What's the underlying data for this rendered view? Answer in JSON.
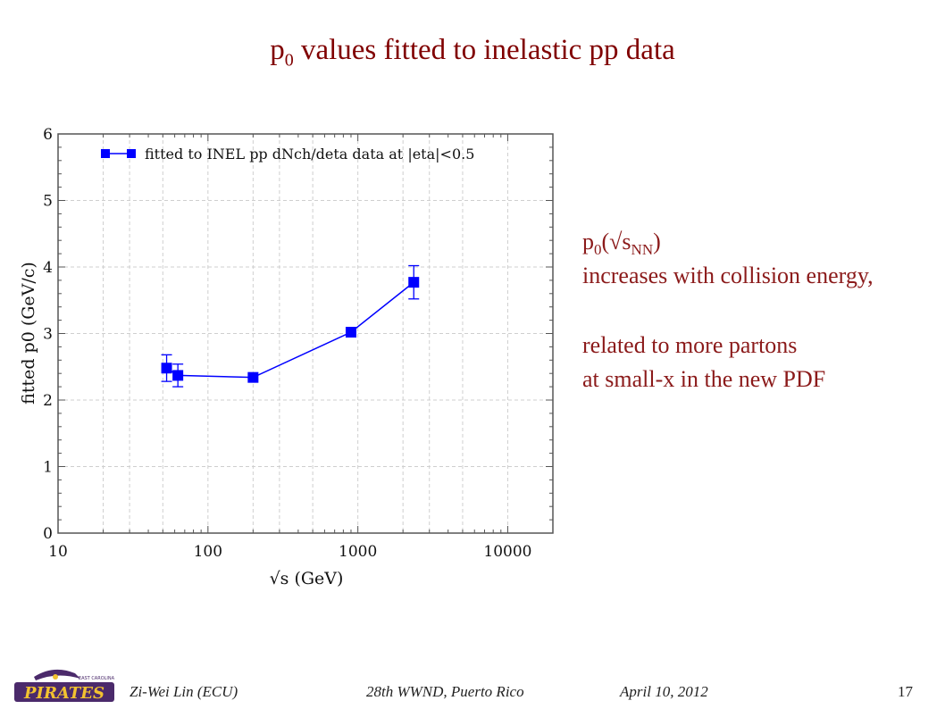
{
  "title": {
    "main_prefix": "p",
    "main_sub": "0",
    "main_rest": " values fitted to inelastic pp data"
  },
  "notes": {
    "line1_prefix": "p",
    "line1_sub0": "0",
    "line1_mid": "(√s",
    "line1_subNN": "NN",
    "line1_end": ")",
    "line2": "increases with collision energy,",
    "line3": "related to more partons",
    "line4": "at small-x  in the new PDF"
  },
  "footer": {
    "author": "Zi-Wei Lin (ECU)",
    "event": "28th WWND, Puerto Rico",
    "date": "April 10, 2012",
    "page": "17"
  },
  "logo": {
    "text": "PIRATES",
    "small_text": "EAST CAROLINA"
  },
  "colors": {
    "accent": "#800000",
    "series": "#0000ff",
    "note": "#8B1A1A"
  },
  "chart_data": {
    "type": "scatter",
    "xscale": "log",
    "xlim": [
      10,
      20000
    ],
    "ylim": [
      0,
      6
    ],
    "xlabel": "√s (GeV)",
    "ylabel": "fitted p0 (GeV/c)",
    "xticks": [
      {
        "v": 10,
        "label": "10"
      },
      {
        "v": 100,
        "label": "100"
      },
      {
        "v": 1000,
        "label": "1000"
      },
      {
        "v": 10000,
        "label": "10000"
      }
    ],
    "yticks": [
      {
        "v": 0,
        "label": "0"
      },
      {
        "v": 1,
        "label": "1"
      },
      {
        "v": 2,
        "label": "2"
      },
      {
        "v": 3,
        "label": "3"
      },
      {
        "v": 4,
        "label": "4"
      },
      {
        "v": 5,
        "label": "5"
      },
      {
        "v": 6,
        "label": "6"
      }
    ],
    "legend": "top-left",
    "series": [
      {
        "name": "fitted to INEL pp dNch/deta data at |eta|<0.5",
        "connected": true,
        "points": [
          {
            "x": 53,
            "y": 2.48,
            "err": 0.2
          },
          {
            "x": 63,
            "y": 2.37,
            "err": 0.17
          },
          {
            "x": 200,
            "y": 2.34,
            "err": 0.0
          },
          {
            "x": 900,
            "y": 3.02,
            "err": 0.0
          },
          {
            "x": 2360,
            "y": 3.77,
            "err": 0.25
          }
        ]
      }
    ]
  }
}
